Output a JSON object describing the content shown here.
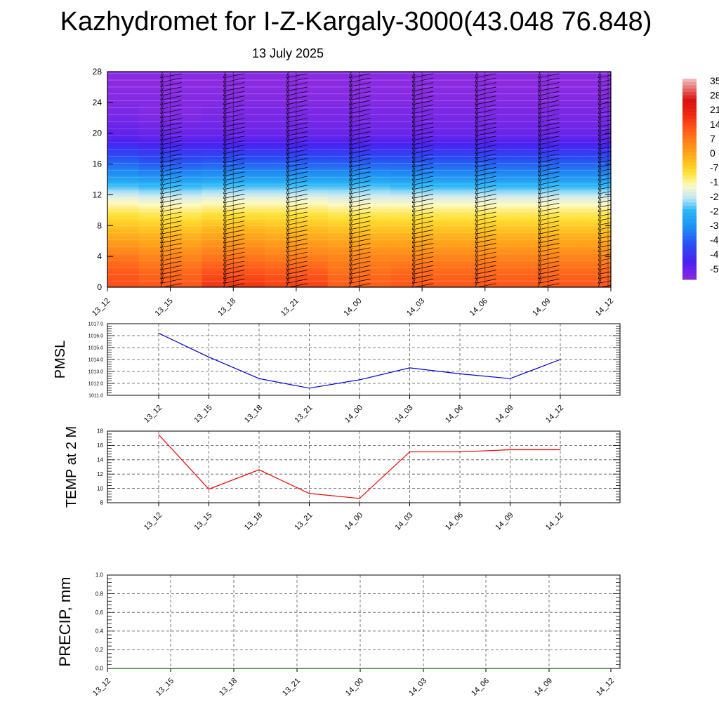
{
  "header": {
    "title": "Kazhydromet for I-Z-Kargaly-3000(43.048 76.848)",
    "subtitle": "13 July 2025"
  },
  "chart_data": [
    {
      "type": "heatmap",
      "name": "upper-air-cross-section",
      "x_categories": [
        "13_12",
        "13_15",
        "13_18",
        "13_21",
        "14_00",
        "14_03",
        "14_06",
        "14_09",
        "14_12"
      ],
      "y_ticks": [
        "0",
        "4",
        "8",
        "12",
        "16",
        "20",
        "24",
        "28"
      ],
      "ylim": [
        0,
        28
      ],
      "colorbar_labels": [
        "35",
        "28",
        "21",
        "14",
        "7",
        "0",
        "-7",
        "-1",
        "-2",
        "-2",
        "-3",
        "-4",
        "-4",
        "-5"
      ],
      "color_scale": {
        "min": -56,
        "max": 38,
        "stops": [
          [
            -56,
            "#8a2be2"
          ],
          [
            -48,
            "#4b20f0"
          ],
          [
            -40,
            "#2a4cf5"
          ],
          [
            -32,
            "#1f8cf2"
          ],
          [
            -24,
            "#29b6f6"
          ],
          [
            -18,
            "#bfe6f5"
          ],
          [
            -12,
            "#fff9c4"
          ],
          [
            -6,
            "#ffe033"
          ],
          [
            0,
            "#ffb81c"
          ],
          [
            7,
            "#ff8c1a"
          ],
          [
            14,
            "#ff5a1a"
          ],
          [
            21,
            "#ef2a10"
          ],
          [
            28,
            "#d81010"
          ],
          [
            38,
            "#f4c4c4"
          ]
        ]
      },
      "levels": [
        0,
        2,
        4,
        6,
        8,
        10,
        11.5,
        13,
        14.5,
        16,
        18,
        19.5,
        21,
        22.5,
        24,
        26,
        28
      ],
      "column_values": [
        [
          16,
          14,
          10,
          4,
          -2,
          -8,
          -14,
          -22,
          -30,
          -36,
          -44,
          -50,
          -52,
          -54,
          -55,
          -56,
          -56
        ],
        [
          15,
          12,
          8,
          3,
          -3,
          -9,
          -15,
          -23,
          -31,
          -38,
          -45,
          -51,
          -53,
          -55,
          -55,
          -56,
          -56
        ],
        [
          20,
          15,
          10,
          5,
          -1,
          -8,
          -14,
          -22,
          -30,
          -37,
          -45,
          -51,
          -53,
          -54,
          -55,
          -56,
          -56
        ],
        [
          18,
          14,
          9,
          4,
          -2,
          -8,
          -14,
          -22,
          -30,
          -37,
          -45,
          -51,
          -53,
          -54,
          -55,
          -56,
          -56
        ],
        [
          14,
          11,
          8,
          3,
          -3,
          -9,
          -15,
          -22,
          -30,
          -37,
          -45,
          -51,
          -53,
          -54,
          -55,
          -56,
          -56
        ],
        [
          15,
          12,
          8,
          3,
          -3,
          -9,
          -15,
          -23,
          -31,
          -37,
          -45,
          -51,
          -53,
          -54,
          -55,
          -56,
          -56
        ],
        [
          15,
          12,
          8,
          3,
          -3,
          -9,
          -15,
          -23,
          -31,
          -37,
          -45,
          -51,
          -53,
          -54,
          -55,
          -56,
          -56
        ],
        [
          15,
          12,
          8,
          3,
          -3,
          -9,
          -15,
          -23,
          -31,
          -37,
          -45,
          -51,
          -53,
          -54,
          -55,
          -56,
          -56
        ],
        [
          15,
          12,
          8,
          3,
          -3,
          -9,
          -15,
          -23,
          -31,
          -37,
          -45,
          -51,
          -53,
          -54,
          -55,
          -56,
          -56
        ]
      ],
      "wind_barb_columns": [
        "13_15",
        "13_18",
        "13_21",
        "14_00",
        "14_03",
        "14_06",
        "14_09",
        "14_12"
      ]
    },
    {
      "type": "line",
      "name": "pmsl",
      "ylabel": "PMSL",
      "ylim": [
        1011.0,
        1017.0
      ],
      "y_ticks": [
        "1011.0",
        "1012.0",
        "1013.0",
        "1014.0",
        "1015.0",
        "1016.0",
        "1017.0"
      ],
      "x_ticks": [
        "13_12",
        "13_15",
        "13_18",
        "13_21",
        "14_00",
        "14_03",
        "14_06",
        "14_09",
        "14_12"
      ],
      "series": [
        {
          "color": "#0000cc",
          "values": [
            1016.2,
            1014.2,
            1012.4,
            1011.6,
            1012.3,
            1013.3,
            1012.8,
            1012.4,
            1014.0
          ]
        }
      ]
    },
    {
      "type": "line",
      "name": "temp-2m",
      "ylabel": "TEMP at 2 M",
      "ylim": [
        8,
        18
      ],
      "y_ticks": [
        "8",
        "10",
        "12",
        "14",
        "16",
        "18"
      ],
      "x_ticks": [
        "13_12",
        "13_15",
        "13_18",
        "13_21",
        "14_00",
        "14_03",
        "14_06",
        "14_09",
        "14_12"
      ],
      "series": [
        {
          "color": "#ee0000",
          "values": [
            17.5,
            9.9,
            12.6,
            9.3,
            8.6,
            15.1,
            15.1,
            15.4,
            15.4
          ]
        }
      ]
    },
    {
      "type": "line",
      "name": "precip",
      "ylabel": "PRECIP, mm",
      "ylim": [
        0.0,
        1.0
      ],
      "y_ticks": [
        "0.0",
        "0.2",
        "0.4",
        "0.6",
        "0.8",
        "1.0"
      ],
      "x_ticks": [
        "13_12",
        "13_15",
        "13_18",
        "13_21",
        "14_00",
        "14_03",
        "14_06",
        "14_09",
        "14_12"
      ],
      "series": [
        {
          "color": "#006400",
          "values": [
            0,
            0,
            0,
            0,
            0,
            0,
            0,
            0,
            0
          ]
        }
      ]
    }
  ]
}
